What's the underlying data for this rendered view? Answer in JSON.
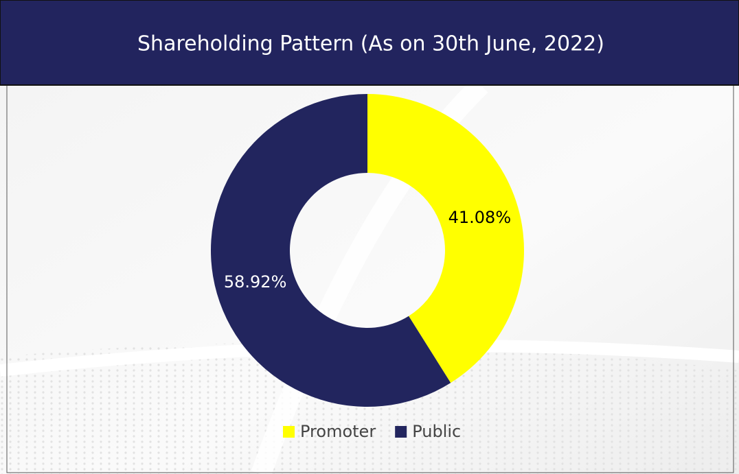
{
  "chart_data": {
    "type": "donut",
    "title": "Shareholding Pattern (As on 30th June, 2022)",
    "categories": [
      "Promoter",
      "Public"
    ],
    "values": [
      41.08,
      58.92
    ],
    "value_labels": [
      "41.08%",
      "58.92%"
    ],
    "colors": [
      "#ffff00",
      "#22255e"
    ],
    "legend": "bottom"
  }
}
